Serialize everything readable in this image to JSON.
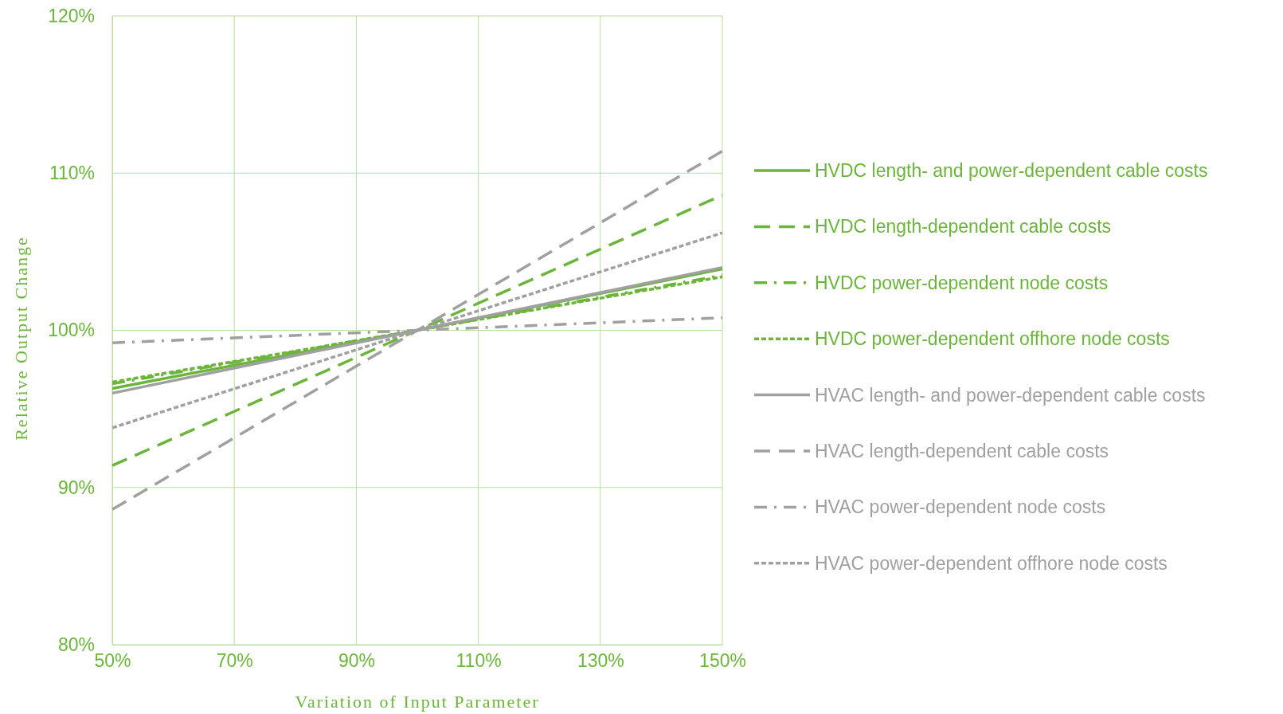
{
  "chart_data": {
    "type": "line",
    "xlabel": "Variation of Input Parameter",
    "ylabel": "Relative Output Change",
    "x": [
      50,
      100,
      150
    ],
    "xlim": [
      50,
      150
    ],
    "xticks": [
      {
        "value": 50,
        "label": "50%"
      },
      {
        "value": 70,
        "label": "70%"
      },
      {
        "value": 90,
        "label": "90%"
      },
      {
        "value": 110,
        "label": "110%"
      },
      {
        "value": 130,
        "label": "130%"
      },
      {
        "value": 150,
        "label": "150%"
      }
    ],
    "ylim": [
      80,
      120
    ],
    "yticks": [
      {
        "value": 80,
        "label": "80%"
      },
      {
        "value": 90,
        "label": "90%"
      },
      {
        "value": 100,
        "label": "100%"
      },
      {
        "value": 110,
        "label": "110%"
      },
      {
        "value": 120,
        "label": "120%"
      }
    ],
    "grid": true,
    "legend": "right",
    "marker": "none",
    "series": [
      {
        "name": "HVDC length- and power-dependent cable costs",
        "color": "#6bb53a",
        "line_style": "solid",
        "values": [
          96.3,
          100,
          103.9
        ]
      },
      {
        "name": "HVDC length-dependent cable costs",
        "color": "#6bb53a",
        "line_style": "dashed",
        "values": [
          91.4,
          100,
          108.6
        ]
      },
      {
        "name": "HVDC power-dependent node costs",
        "color": "#6bb53a",
        "line_style": "dashdot",
        "values": [
          96.6,
          100,
          103.5
        ]
      },
      {
        "name": "HVDC power-dependent offhore node costs",
        "color": "#6bb53a",
        "line_style": "dotted",
        "values": [
          96.7,
          100,
          103.4
        ]
      },
      {
        "name": "HVAC length- and power-dependent cable costs",
        "color": "#a0a0a0",
        "line_style": "solid",
        "values": [
          96.0,
          100,
          104.0
        ]
      },
      {
        "name": "HVAC length-dependent cable costs",
        "color": "#a0a0a0",
        "line_style": "dashed",
        "values": [
          88.6,
          100,
          111.4
        ]
      },
      {
        "name": "HVAC power-dependent node costs",
        "color": "#a0a0a0",
        "line_style": "dashdot",
        "values": [
          99.2,
          100,
          100.8
        ]
      },
      {
        "name": "HVAC power-dependent offhore node costs",
        "color": "#a0a0a0",
        "line_style": "dotted",
        "values": [
          93.8,
          100,
          106.2
        ]
      }
    ]
  }
}
